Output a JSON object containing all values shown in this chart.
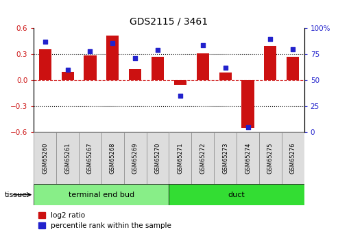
{
  "title": "GDS2115 / 3461",
  "samples": [
    "GSM65260",
    "GSM65261",
    "GSM65267",
    "GSM65268",
    "GSM65269",
    "GSM65270",
    "GSM65271",
    "GSM65272",
    "GSM65273",
    "GSM65274",
    "GSM65275",
    "GSM65276"
  ],
  "log2_ratio": [
    0.36,
    0.1,
    0.29,
    0.52,
    0.13,
    0.27,
    -0.05,
    0.31,
    0.09,
    -0.55,
    0.4,
    0.27
  ],
  "percentile_rank": [
    87,
    60,
    78,
    86,
    71,
    79,
    35,
    84,
    62,
    5,
    90,
    80
  ],
  "groups": [
    {
      "label": "terminal end bud",
      "start": 0,
      "end": 6,
      "color": "#88ee88"
    },
    {
      "label": "duct",
      "start": 6,
      "end": 12,
      "color": "#33dd33"
    }
  ],
  "bar_color": "#cc1111",
  "dot_color": "#2222cc",
  "ylim": [
    -0.6,
    0.6
  ],
  "y2lim": [
    0,
    100
  ],
  "yticks_left": [
    -0.6,
    -0.3,
    0.0,
    0.3,
    0.6
  ],
  "yticks_right": [
    0,
    25,
    50,
    75,
    100
  ],
  "hline_color": "#cc1111",
  "dotted_color": "black",
  "background_color": "#ffffff",
  "plot_bg": "#ffffff",
  "bar_width": 0.55,
  "tissue_label": "tissue",
  "legend_log2": "log2 ratio",
  "legend_pct": "percentile rank within the sample",
  "sample_box_color": "#dddddd",
  "sample_box_edge": "#888888"
}
